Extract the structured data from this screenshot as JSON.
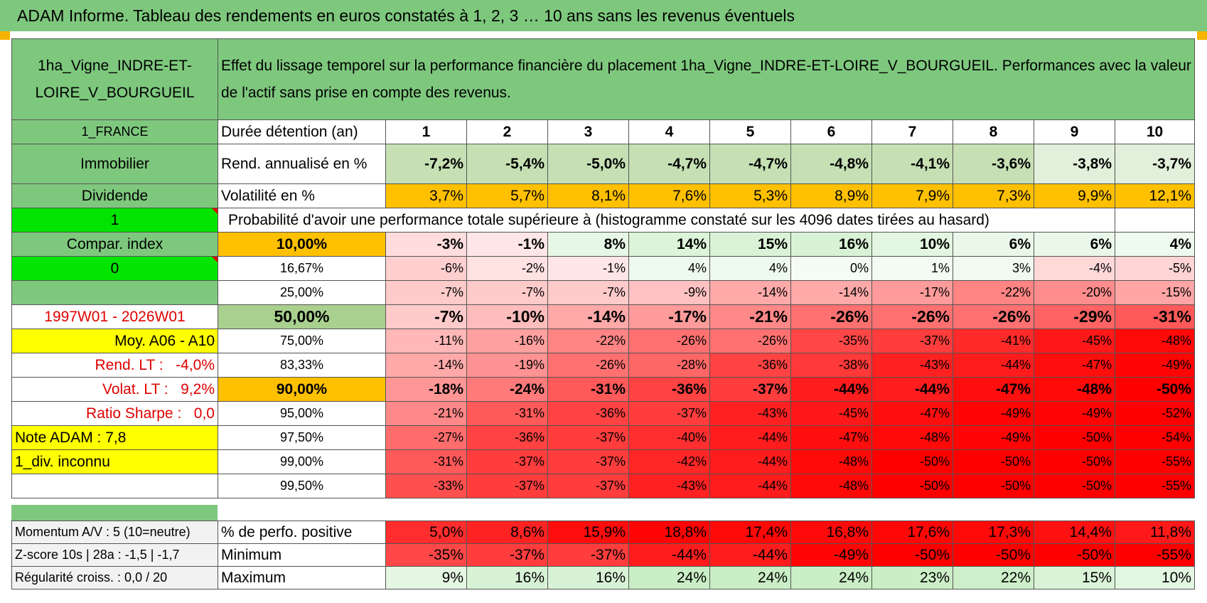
{
  "title": "ADAM Informe. Tableau des rendements en euros constatés à 1, 2, 3 … 10 ans sans les revenus éventuels",
  "asset_name": "1ha_Vigne_INDRE-ET-LOIRE_V_BOURGUEIL",
  "description": "Effet du lissage temporel sur la performance financière du placement 1ha_Vigne_INDRE-ET-LOIRE_V_BOURGUEIL. Performances avec la valeur de l'actif sans prise en compte des revenus.",
  "left_panel": {
    "country": "1_FRANCE",
    "category": "Immobilier",
    "income_type": "Dividende",
    "value_1": "1",
    "compar_index": "Compar. index",
    "value_0": "0",
    "period": "1997W01 - 2026W01",
    "moy": "Moy. A06 - A10",
    "rend_lt_label": "Rend. LT :",
    "rend_lt_value": "-4,0%",
    "volat_lt_label": "Volat. LT :",
    "volat_lt_value": "9,2%",
    "sharpe_label": "Ratio Sharpe :",
    "sharpe_value": "0,0",
    "note": "Note ADAM : 7,8",
    "div": "1_div. inconnu",
    "momentum": "Momentum A/V : 5 (10=neutre)",
    "zscore": "Z-score 10s | 28a : -1,5 | -1,7",
    "regularite": "Régularité croiss. : 0,0 / 20"
  },
  "row_labels": {
    "duree": "Durée détention (an)",
    "rend": "Rend. annualisé en %",
    "volat": "Volatilité en %",
    "proba": "Probabilité d'avoir une performance totale supérieure à (histogramme constaté sur les 4096 dates tirées au hasard)",
    "pos": "% de perfo. positive",
    "min": "Minimum",
    "max": "Maximum"
  },
  "years": [
    "1",
    "2",
    "3",
    "4",
    "5",
    "6",
    "7",
    "8",
    "9",
    "10"
  ],
  "rend": [
    "-7,2%",
    "-5,4%",
    "-5,0%",
    "-4,7%",
    "-4,7%",
    "-4,8%",
    "-4,1%",
    "-3,6%",
    "-3,8%",
    "-3,7%"
  ],
  "volat": [
    "3,7%",
    "5,7%",
    "8,1%",
    "7,6%",
    "5,3%",
    "8,9%",
    "7,9%",
    "7,3%",
    "9,9%",
    "12,1%"
  ],
  "percentiles": [
    {
      "p": "10,00%",
      "v": [
        "-3%",
        "-1%",
        "8%",
        "14%",
        "15%",
        "16%",
        "10%",
        "6%",
        "6%",
        "4%"
      ]
    },
    {
      "p": "16,67%",
      "v": [
        "-6%",
        "-2%",
        "-1%",
        "4%",
        "4%",
        "0%",
        "1%",
        "3%",
        "-4%",
        "-5%"
      ]
    },
    {
      "p": "25,00%",
      "v": [
        "-7%",
        "-7%",
        "-7%",
        "-9%",
        "-14%",
        "-14%",
        "-17%",
        "-22%",
        "-20%",
        "-15%"
      ]
    },
    {
      "p": "50,00%",
      "v": [
        "-7%",
        "-10%",
        "-14%",
        "-17%",
        "-21%",
        "-26%",
        "-26%",
        "-26%",
        "-29%",
        "-31%"
      ]
    },
    {
      "p": "75,00%",
      "v": [
        "-11%",
        "-16%",
        "-22%",
        "-26%",
        "-26%",
        "-35%",
        "-37%",
        "-41%",
        "-45%",
        "-48%"
      ]
    },
    {
      "p": "83,33%",
      "v": [
        "-14%",
        "-19%",
        "-26%",
        "-28%",
        "-36%",
        "-38%",
        "-43%",
        "-44%",
        "-47%",
        "-49%"
      ]
    },
    {
      "p": "90,00%",
      "v": [
        "-18%",
        "-24%",
        "-31%",
        "-36%",
        "-37%",
        "-44%",
        "-44%",
        "-47%",
        "-48%",
        "-50%"
      ]
    },
    {
      "p": "95,00%",
      "v": [
        "-21%",
        "-31%",
        "-36%",
        "-37%",
        "-43%",
        "-45%",
        "-47%",
        "-49%",
        "-49%",
        "-52%"
      ]
    },
    {
      "p": "97,50%",
      "v": [
        "-27%",
        "-36%",
        "-37%",
        "-40%",
        "-44%",
        "-47%",
        "-48%",
        "-49%",
        "-50%",
        "-54%"
      ]
    },
    {
      "p": "99,00%",
      "v": [
        "-31%",
        "-37%",
        "-37%",
        "-42%",
        "-44%",
        "-48%",
        "-50%",
        "-50%",
        "-50%",
        "-55%"
      ]
    },
    {
      "p": "99,50%",
      "v": [
        "-33%",
        "-37%",
        "-37%",
        "-43%",
        "-44%",
        "-48%",
        "-50%",
        "-50%",
        "-50%",
        "-55%"
      ]
    }
  ],
  "pos": [
    "5,0%",
    "8,6%",
    "15,9%",
    "18,8%",
    "17,4%",
    "16,8%",
    "17,6%",
    "17,3%",
    "14,4%",
    "11,8%"
  ],
  "min": [
    "-35%",
    "-37%",
    "-37%",
    "-44%",
    "-44%",
    "-49%",
    "-50%",
    "-50%",
    "-50%",
    "-55%"
  ],
  "max": [
    "9%",
    "16%",
    "16%",
    "24%",
    "24%",
    "24%",
    "23%",
    "22%",
    "15%",
    "10%"
  ],
  "colors": {
    "header_green": "#7ec87e",
    "bright_green": "#00e400",
    "yellow": "#ffff00",
    "orange": "#ffc000",
    "red": "#ff0000",
    "label_red": "#e00000"
  }
}
